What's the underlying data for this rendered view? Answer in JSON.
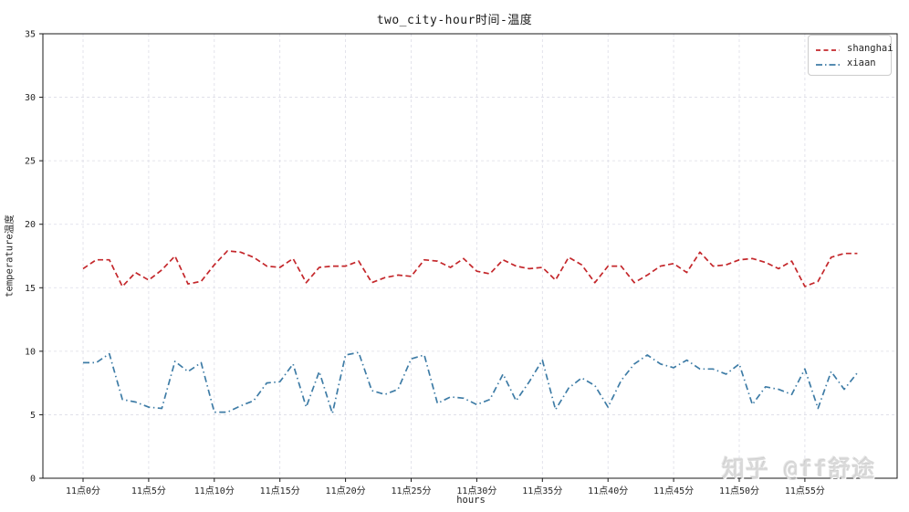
{
  "title": "two_city-hour时间-温度",
  "watermark": "知乎 @ff舒途",
  "chart_data": {
    "type": "line",
    "title": "two_city-hour时间-温度",
    "xlabel": "hours",
    "ylabel": "temperature温度",
    "x_unit": "minute of hour 11",
    "x": [
      0,
      1,
      2,
      3,
      4,
      5,
      6,
      7,
      8,
      9,
      10,
      11,
      12,
      13,
      14,
      15,
      16,
      17,
      18,
      19,
      20,
      21,
      22,
      23,
      24,
      25,
      26,
      27,
      28,
      29,
      30,
      31,
      32,
      33,
      34,
      35,
      36,
      37,
      38,
      39,
      40,
      41,
      42,
      43,
      44,
      45,
      46,
      47,
      48,
      49,
      50,
      51,
      52,
      53,
      54,
      55,
      56,
      57,
      58,
      59
    ],
    "x_tick_positions": [
      0,
      5,
      10,
      15,
      20,
      25,
      30,
      35,
      40,
      45,
      50,
      55
    ],
    "x_tick_labels": [
      "11点0分",
      "11点5分",
      "11点10分",
      "11点15分",
      "11点20分",
      "11点25分",
      "11点30分",
      "11点35分",
      "11点40分",
      "11点45分",
      "11点50分",
      "11点55分"
    ],
    "ylim": [
      0,
      35
    ],
    "yticks": [
      0,
      5,
      10,
      15,
      20,
      25,
      30,
      35
    ],
    "grid": "dashed",
    "grid_color": "#dcdce6",
    "axis_color": "#1a1a1a",
    "legend_position": "upper right",
    "series": [
      {
        "name": "shanghai",
        "color": "#c4272b",
        "linestyle": "dashed",
        "values": [
          16.5,
          17.2,
          17.2,
          15.1,
          16.2,
          15.6,
          16.4,
          17.5,
          15.3,
          15.5,
          16.8,
          17.9,
          17.8,
          17.4,
          16.7,
          16.6,
          17.3,
          15.4,
          16.6,
          16.7,
          16.7,
          17.1,
          15.4,
          15.8,
          16.0,
          15.9,
          17.2,
          17.1,
          16.6,
          17.3,
          16.3,
          16.1,
          17.2,
          16.7,
          16.5,
          16.6,
          15.6,
          17.4,
          16.8,
          15.4,
          16.7,
          16.7,
          15.4,
          16.0,
          16.7,
          16.9,
          16.2,
          17.8,
          16.7,
          16.8,
          17.2,
          17.3,
          17.0,
          16.5,
          17.1,
          15.1,
          15.5,
          17.4,
          17.7,
          17.7
        ]
      },
      {
        "name": "xiaan",
        "color": "#3e7ca6",
        "linestyle": "dashdot",
        "values": [
          9.1,
          9.1,
          9.8,
          6.2,
          6.0,
          5.6,
          5.5,
          9.2,
          8.4,
          9.1,
          5.2,
          5.2,
          5.7,
          6.1,
          7.5,
          7.6,
          9.0,
          5.6,
          8.4,
          5.1,
          9.7,
          9.9,
          6.9,
          6.6,
          7.0,
          9.4,
          9.7,
          5.9,
          6.4,
          6.3,
          5.8,
          6.2,
          8.2,
          6.1,
          7.6,
          9.3,
          5.4,
          7.1,
          7.9,
          7.3,
          5.6,
          7.7,
          9.0,
          9.7,
          9.0,
          8.7,
          9.3,
          8.6,
          8.6,
          8.2,
          9.0,
          5.8,
          7.2,
          7.0,
          6.6,
          8.6,
          5.5,
          8.4,
          7.0,
          8.3
        ]
      }
    ]
  }
}
